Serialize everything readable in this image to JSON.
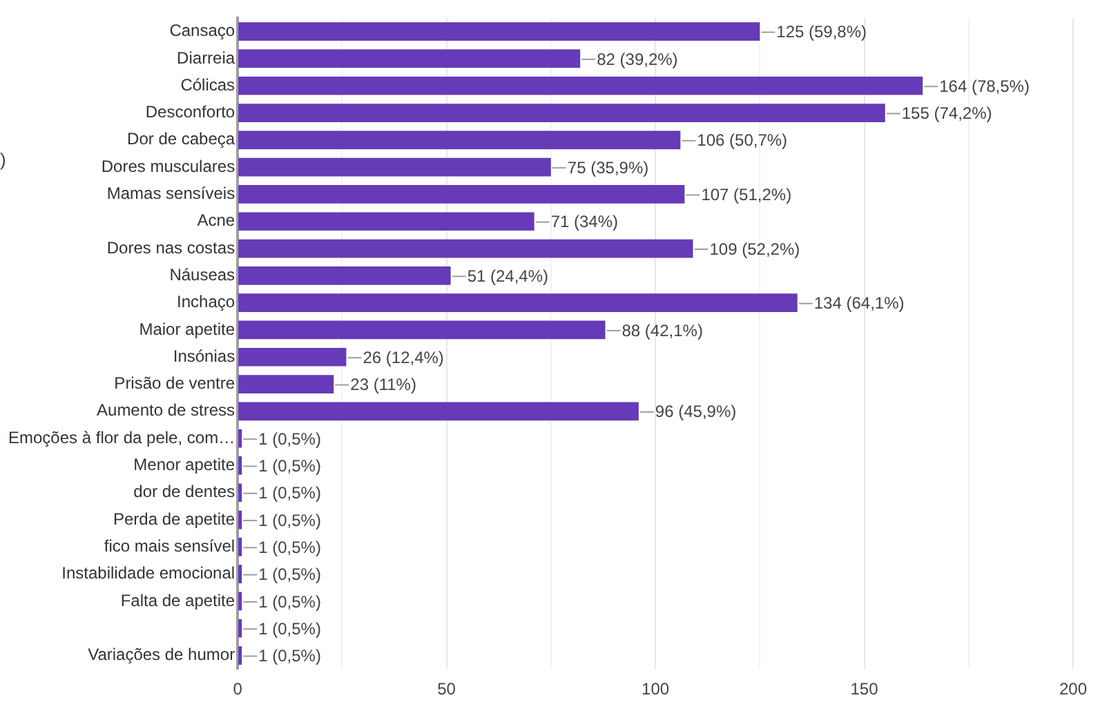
{
  "chart_data": {
    "type": "bar",
    "orientation": "horizontal",
    "categories": [
      "Cansaço",
      "Diarreia",
      "Cólicas",
      "Desconforto",
      "Dor de cabeça",
      "Dores musculares",
      "Mamas sensíveis",
      "Acne",
      "Dores nas costas",
      "Náuseas",
      "Inchaço",
      "Maior apetite",
      "Insónias",
      "Prisão de ventre",
      "Aumento de stress",
      "Emoções à flor da pele, com…",
      "Menor apetite",
      "dor de dentes",
      "Perda de apetite",
      "fico mais sensível",
      "Instabilidade emocional",
      "Falta de apetite",
      null,
      "Variações de humor"
    ],
    "values": [
      125,
      82,
      164,
      155,
      106,
      75,
      107,
      71,
      109,
      51,
      134,
      88,
      26,
      23,
      96,
      1,
      1,
      1,
      1,
      1,
      1,
      1,
      1,
      1
    ],
    "value_labels": [
      "125 (59,8%)",
      "82 (39,2%)",
      "164 (78,5%)",
      "155 (74,2%)",
      "106 (50,7%)",
      "75 (35,9%)",
      "107 (51,2%)",
      "71 (34%)",
      "109 (52,2%)",
      "51 (24,4%)",
      "134 (64,1%)",
      "88 (42,1%)",
      "26 (12,4%)",
      "23 (11%)",
      "96 (45,9%)",
      "1 (0,5%)",
      "1 (0,5%)",
      "1 (0,5%)",
      "1 (0,5%)",
      "1 (0,5%)",
      "1 (0,5%)",
      "1 (0,5%)",
      "1 (0,5%)",
      "1 (0,5%)"
    ],
    "color": "#673ab7",
    "xlim": [
      0,
      200
    ],
    "xticks": [
      0,
      {
        "value": 25,
        "label": null
      },
      50,
      {
        "value": 75,
        "label": null
      },
      100,
      {
        "value": 125,
        "label": null
      },
      150,
      {
        "value": 175,
        "label": null
      },
      200
    ],
    "grid": "x",
    "annotations": [
      ")"
    ]
  }
}
